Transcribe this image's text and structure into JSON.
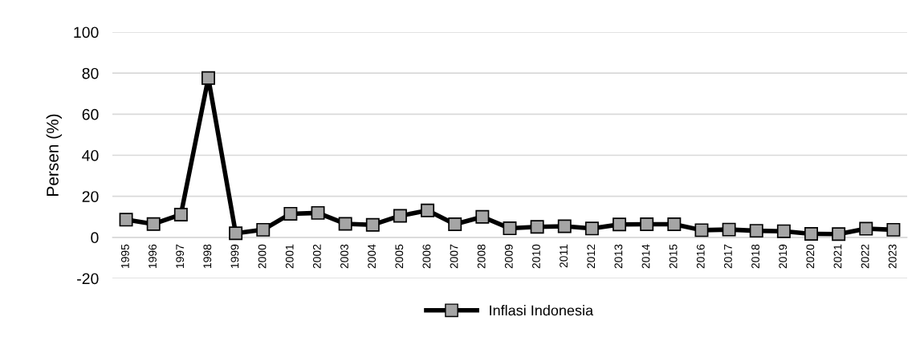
{
  "chart_data": {
    "type": "line",
    "ylabel": "Persen (%)",
    "categories": [
      "1995",
      "1996",
      "1997",
      "1998",
      "1999",
      "2000",
      "2001",
      "2002",
      "2003",
      "2004",
      "2005",
      "2006",
      "2007",
      "2008",
      "2009",
      "2010",
      "2011",
      "2012",
      "2013",
      "2014",
      "2015",
      "2016",
      "2017",
      "2018",
      "2019",
      "2020",
      "2021",
      "2022",
      "2023"
    ],
    "series": [
      {
        "name": "Inflasi Indonesia",
        "color": "#000000",
        "values": [
          8.6,
          6.5,
          11.1,
          77.6,
          2.0,
          3.7,
          11.5,
          11.9,
          6.6,
          6.1,
          10.5,
          13.1,
          6.4,
          10.0,
          4.4,
          5.1,
          5.4,
          4.3,
          6.3,
          6.4,
          6.4,
          3.5,
          3.8,
          3.2,
          3.0,
          1.7,
          1.6,
          4.2,
          3.7
        ]
      }
    ],
    "ylim": [
      -20,
      100
    ],
    "yticks": [
      -20,
      0,
      20,
      40,
      60,
      80,
      100
    ],
    "grid": "y",
    "legend": "bottom",
    "marker": "square",
    "line_style": "solid"
  }
}
